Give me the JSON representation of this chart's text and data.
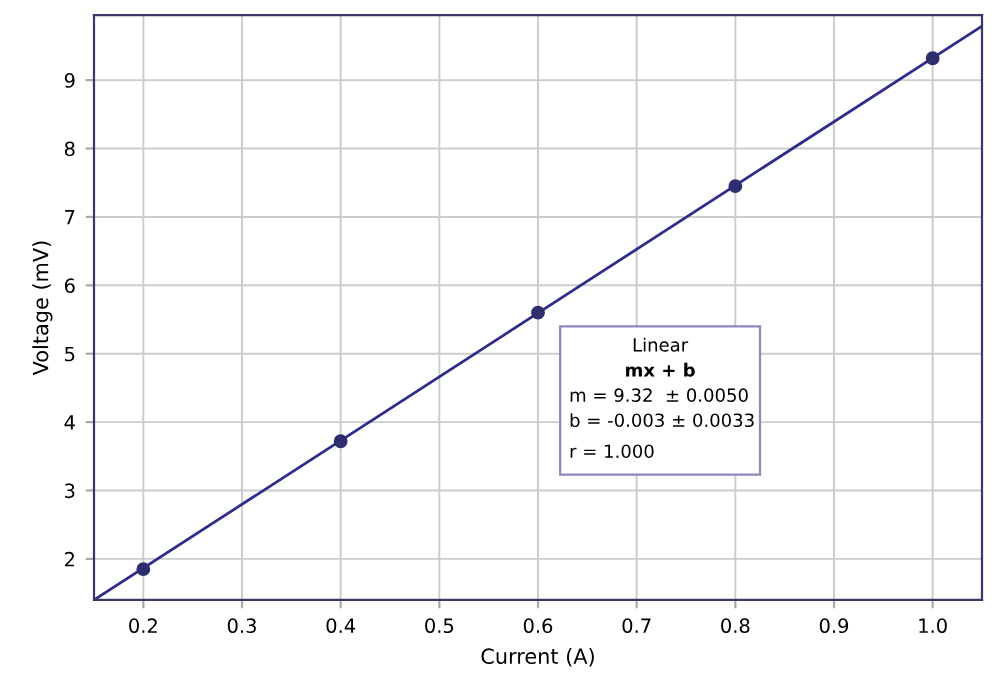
{
  "chart_data": {
    "type": "scatter",
    "xlabel": "Current (A)",
    "ylabel": "Voltage (mV)",
    "series": [
      {
        "color": "#2e2e6e",
        "x": [
          0.2,
          0.4,
          0.6,
          0.8,
          1.0
        ],
        "values": [
          1.85,
          3.72,
          5.6,
          7.45,
          9.32
        ]
      },
      {
        "type": "line",
        "color": "#2e2e8a",
        "x": [
          0.15,
          1.05
        ],
        "values": [
          1.4,
          9.79
        ],
        "marker": "none"
      }
    ],
    "xlim": [
      0.15,
      1.05
    ],
    "ylim": [
      1.4,
      9.95
    ],
    "xticks": [
      {
        "value": 0.2,
        "label": "0.2"
      },
      {
        "value": 0.3,
        "label": "0.3"
      },
      {
        "value": 0.4,
        "label": "0.4"
      },
      {
        "value": 0.5,
        "label": "0.5"
      },
      {
        "value": 0.6,
        "label": "0.6"
      },
      {
        "value": 0.7,
        "label": "0.7"
      },
      {
        "value": 0.8,
        "label": "0.8"
      },
      {
        "value": 0.9,
        "label": "0.9"
      },
      {
        "value": 1.0,
        "label": "1.0"
      }
    ],
    "yticks": [
      2,
      3,
      4,
      5,
      6,
      7,
      8,
      9
    ],
    "grid": true,
    "marker": "circle",
    "annotations": [
      "Linear",
      "mx + b",
      "m = 9.32  ± 0.0050",
      "b = -0.003 ± 0.0033",
      "r = 1.000"
    ]
  }
}
